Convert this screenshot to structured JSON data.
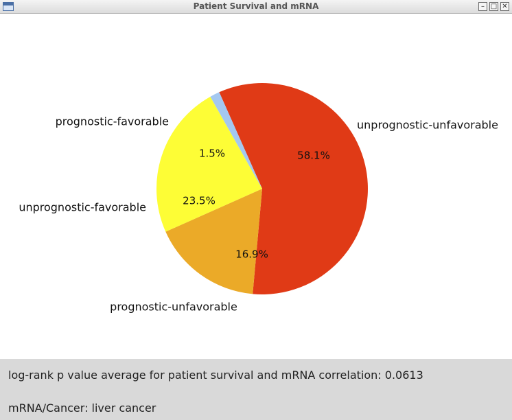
{
  "window": {
    "title": "Patient Survival and mRNA",
    "buttons": [
      "minimize",
      "maximize",
      "close"
    ]
  },
  "chart_data": {
    "type": "pie",
    "start_angle_deg": 114,
    "direction": "clockwise",
    "slices": [
      {
        "label": "unprognostic-unfavorable",
        "value": 58.1,
        "pct_label": "58.1%",
        "color": "#e03a16"
      },
      {
        "label": "prognostic-unfavorable",
        "value": 16.9,
        "pct_label": "16.9%",
        "color": "#ebaa28"
      },
      {
        "label": "unprognostic-favorable",
        "value": 23.5,
        "pct_label": "23.5%",
        "color": "#fdfd36"
      },
      {
        "label": "prognostic-favorable",
        "value": 1.5,
        "pct_label": "1.5%",
        "color": "#a4c8f0"
      }
    ]
  },
  "info": {
    "pvalue_text": "log-rank p value average for patient survival and mRNA correlation: 0.0613",
    "cancer_text": "mRNA/Cancer: liver cancer"
  }
}
